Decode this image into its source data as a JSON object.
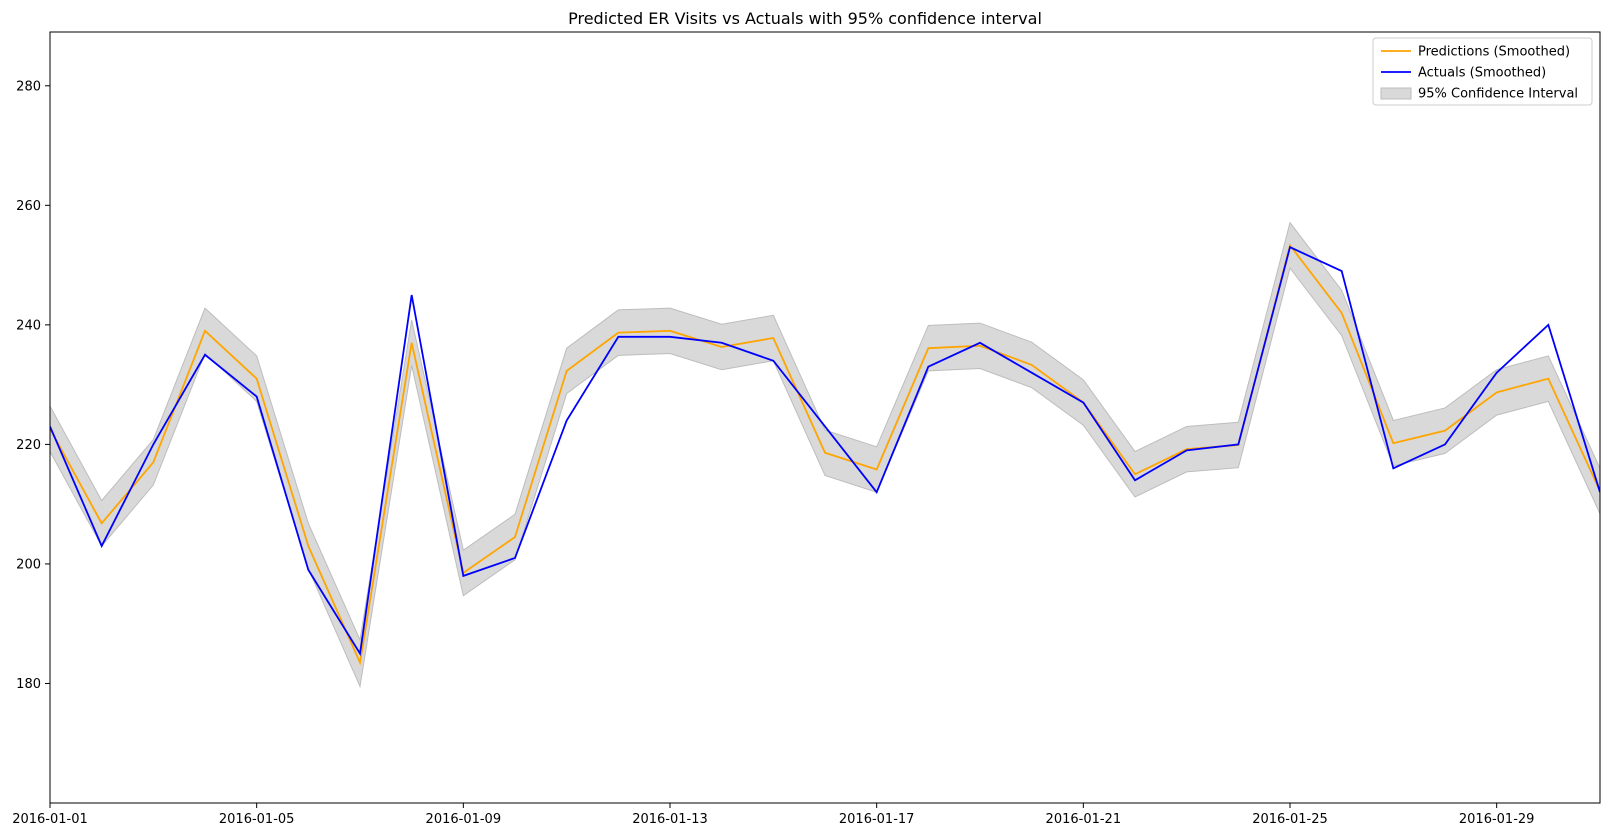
{
  "chart_data": {
    "type": "line",
    "title": "Predicted ER Visits vs Actuals with 95% confidence interval",
    "xlabel": "",
    "ylabel": "",
    "x": [
      "2016-01-01",
      "2016-01-02",
      "2016-01-03",
      "2016-01-04",
      "2016-01-05",
      "2016-01-06",
      "2016-01-07",
      "2016-01-08",
      "2016-01-09",
      "2016-01-10",
      "2016-01-11",
      "2016-01-12",
      "2016-01-13",
      "2016-01-14",
      "2016-01-15",
      "2016-01-16",
      "2016-01-17",
      "2016-01-18",
      "2016-01-19",
      "2016-01-20",
      "2016-01-21",
      "2016-01-22",
      "2016-01-23",
      "2016-01-24",
      "2016-01-25",
      "2016-01-26",
      "2016-01-27",
      "2016-01-28",
      "2016-01-29",
      "2016-01-30",
      "2016-01-31"
    ],
    "xlim": [
      "2016-01-01",
      "2016-01-31"
    ],
    "ylim": [
      160,
      289
    ],
    "xticks": [
      "2016-01-01",
      "2016-01-05",
      "2016-01-09",
      "2016-01-13",
      "2016-01-17",
      "2016-01-21",
      "2016-01-25",
      "2016-01-29"
    ],
    "yticks": [
      180,
      200,
      220,
      240,
      260,
      280
    ],
    "grid": false,
    "legend_position": "top-right",
    "series": [
      {
        "name": "Predictions (Smoothed)",
        "color": "#FFA500",
        "values": [
          222.6,
          206.8,
          217.0,
          239.0,
          231.0,
          203.0,
          183.5,
          237.0,
          198.5,
          204.5,
          232.3,
          238.7,
          239.0,
          236.3,
          237.8,
          218.6,
          215.8,
          236.1,
          236.5,
          233.3,
          227.0,
          215.0,
          219.2,
          219.9,
          253.3,
          242.0,
          220.2,
          222.3,
          228.7,
          231.0,
          212.2
        ]
      },
      {
        "name": "Actuals (Smoothed)",
        "color": "#0000FF",
        "values": [
          223,
          203,
          220,
          235,
          228,
          199,
          185,
          245,
          198,
          201,
          224,
          238,
          238,
          237,
          234,
          223,
          212,
          233,
          237,
          232,
          227,
          214,
          219,
          220,
          253,
          249,
          216,
          220,
          232,
          240,
          212
        ]
      }
    ],
    "confidence_interval": {
      "name": "95% Confidence Interval",
      "color": "#D9D9D9",
      "lower": [
        218.8,
        203.0,
        213.2,
        235.2,
        227.2,
        199.2,
        179.5,
        233.2,
        194.7,
        200.7,
        228.5,
        234.9,
        235.2,
        232.5,
        234.0,
        214.8,
        212.0,
        232.3,
        232.7,
        229.5,
        223.2,
        211.2,
        215.4,
        216.1,
        249.5,
        238.2,
        216.4,
        218.5,
        224.9,
        227.2,
        208.4
      ],
      "upper": [
        226.4,
        210.6,
        220.8,
        242.8,
        234.8,
        206.8,
        187.3,
        240.8,
        202.3,
        208.3,
        236.1,
        242.5,
        242.8,
        240.1,
        241.6,
        222.4,
        219.6,
        239.9,
        240.3,
        237.1,
        230.8,
        218.8,
        223.0,
        223.7,
        257.1,
        245.8,
        224.0,
        226.1,
        232.5,
        234.8,
        216.0
      ]
    }
  }
}
